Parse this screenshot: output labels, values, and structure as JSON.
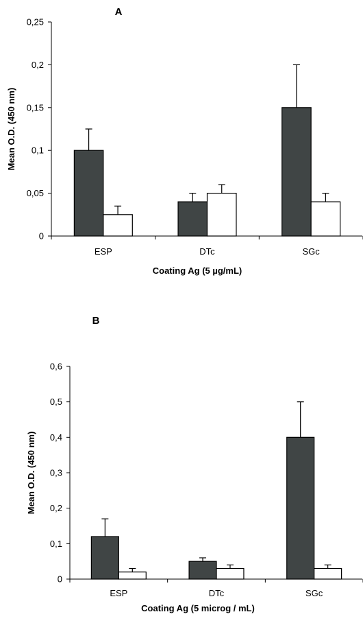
{
  "chart_data": [
    {
      "type": "bar",
      "panel_label": "A",
      "categories": [
        "ESP",
        "DTc",
        "SGc"
      ],
      "series": [
        {
          "values": [
            0.1,
            0.04,
            0.15
          ],
          "errors": [
            0.025,
            0.01,
            0.05
          ],
          "color": "#404545"
        },
        {
          "values": [
            0.025,
            0.05,
            0.04
          ],
          "errors": [
            0.01,
            0.01,
            0.01
          ],
          "color": "#ffffff"
        }
      ],
      "xlabel": "Coating Ag (5 µg/mL)",
      "ylabel": "Mean O.D. (450 nm)",
      "ylim": [
        0,
        0.25
      ],
      "yticks": [
        0,
        0.05,
        0.1,
        0.15,
        0.2,
        0.25
      ],
      "ytick_labels": [
        "0",
        "0,05",
        "0,1",
        "0,15",
        "0,2",
        "0,25"
      ],
      "grid": false
    },
    {
      "type": "bar",
      "panel_label": "B",
      "categories": [
        "ESP",
        "DTc",
        "SGc"
      ],
      "series": [
        {
          "values": [
            0.12,
            0.05,
            0.4
          ],
          "errors": [
            0.05,
            0.01,
            0.1
          ],
          "color": "#404545"
        },
        {
          "values": [
            0.02,
            0.03,
            0.03
          ],
          "errors": [
            0.01,
            0.01,
            0.01
          ],
          "color": "#ffffff"
        }
      ],
      "xlabel": "Coating Ag (5 microg / mL)",
      "ylabel": "Mean O.D. (450 nm)",
      "ylim": [
        0,
        0.6
      ],
      "yticks": [
        0,
        0.1,
        0.2,
        0.3,
        0.4,
        0.5,
        0.6
      ],
      "ytick_labels": [
        "0",
        "0,1",
        "0,2",
        "0,3",
        "0,4",
        "0,5",
        "0,6"
      ],
      "grid": false
    }
  ]
}
